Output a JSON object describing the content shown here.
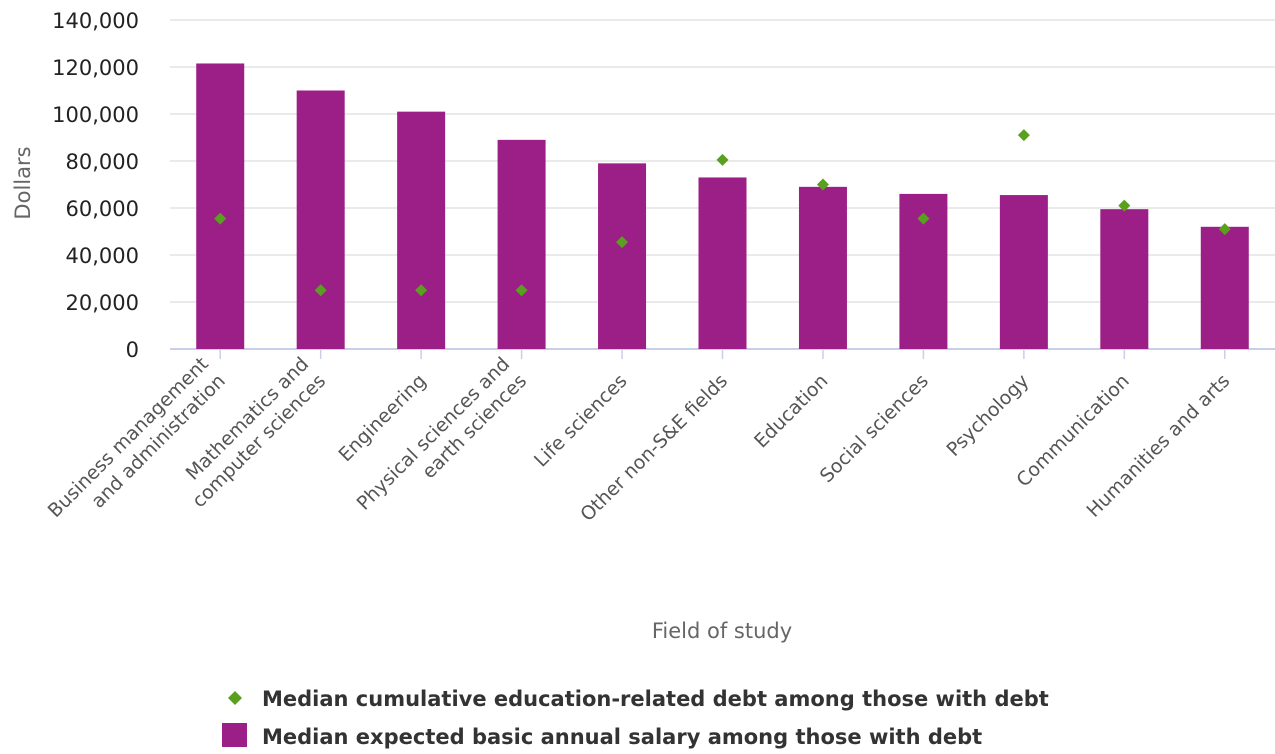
{
  "chart_data": {
    "type": "bar",
    "xlabel": "Field of study",
    "ylabel": "Dollars",
    "ylim": [
      0,
      140000
    ],
    "yticks": [
      "0",
      "20,000",
      "40,000",
      "60,000",
      "80,000",
      "100,000",
      "120,000",
      "140,000"
    ],
    "ytick_values": [
      0,
      20000,
      40000,
      60000,
      80000,
      100000,
      120000,
      140000
    ],
    "grid": true,
    "legend_position": "bottom-center",
    "categories": [
      [
        "Business management",
        "and administration"
      ],
      [
        "Mathematics and",
        "computer sciences"
      ],
      [
        "Engineering"
      ],
      [
        "Physical sciences and",
        "earth sciences"
      ],
      [
        "Life sciences"
      ],
      [
        "Other non-S&E fields"
      ],
      [
        "Education"
      ],
      [
        "Social sciences"
      ],
      [
        "Psychology"
      ],
      [
        "Communication"
      ],
      [
        "Humanities and arts"
      ]
    ],
    "series": [
      {
        "name": "Median expected basic annual salary among those with debt",
        "type": "bar",
        "color": "#9c1e87",
        "values": [
          121500,
          110000,
          101000,
          89000,
          79000,
          73000,
          69000,
          66000,
          65500,
          59500,
          52000
        ]
      },
      {
        "name": "Median cumulative education-related debt among those with debt",
        "type": "scatter",
        "marker": "diamond",
        "color": "#5aa01f",
        "values": [
          55500,
          25000,
          25000,
          25000,
          45500,
          80500,
          70000,
          55500,
          91000,
          61000,
          51000
        ]
      }
    ]
  }
}
